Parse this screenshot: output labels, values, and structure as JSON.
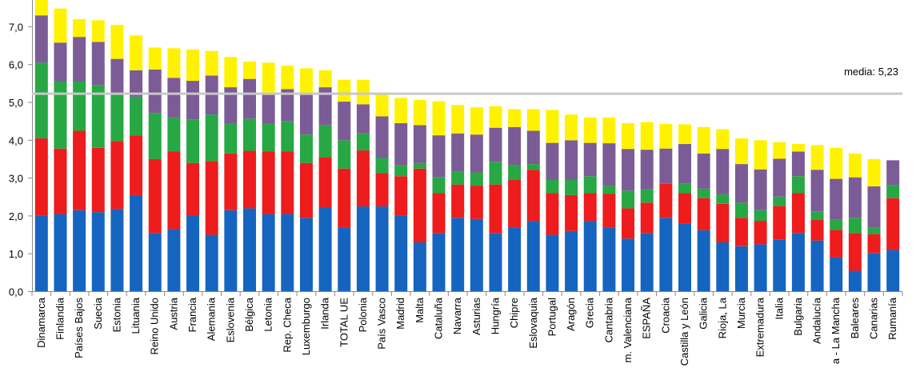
{
  "chart_data": {
    "type": "bar",
    "stacked": true,
    "yticks": [
      "0,0",
      "1,0",
      "2,0",
      "3,0",
      "4,0",
      "5,0",
      "6,0",
      "7,0"
    ],
    "ylim": [
      0,
      7.7
    ],
    "grid": false,
    "categories": [
      "Dinamarca",
      "Finlandia",
      "Países Bajos",
      "Suecia",
      "Estonia",
      "Lituania",
      "Reino Unido",
      "Austria",
      "Francia",
      "Alemania",
      "Eslovenia",
      "Bélgica",
      "Letonia",
      "Rep. Checa",
      "Luxemburgo",
      "Irlanda",
      "TOTAL UE",
      "Polonia",
      "País Vasco",
      "Madrid",
      "Malta",
      "Cataluña",
      "Navarra",
      "Asturias",
      "Hungría",
      "Chipre",
      "Eslovaquia",
      "Portugal",
      "Aragón",
      "Grecia",
      "Cantabria",
      "m. Valenciana",
      "ESPAÑA",
      "Croacia",
      "Castilla y León",
      "Galicia",
      "Rioja, La",
      "Murcia",
      "Extremadura",
      "Italia",
      "Bulgaria",
      "Andalucía",
      "a - La Mancha",
      "Baleares",
      "Canarias",
      "Rumanía"
    ],
    "series": [
      {
        "color": "#1565C0",
        "values": [
          2.0,
          2.05,
          2.15,
          2.1,
          2.18,
          2.55,
          1.55,
          1.65,
          2.02,
          1.5,
          2.15,
          2.2,
          2.05,
          2.05,
          1.95,
          2.22,
          1.7,
          2.25,
          2.25,
          2.0,
          1.3,
          1.55,
          1.95,
          1.92,
          1.55,
          1.7,
          1.87,
          1.5,
          1.6,
          1.87,
          1.7,
          1.4,
          1.55,
          1.95,
          1.8,
          1.62,
          1.3,
          1.2,
          1.25,
          1.38,
          1.55,
          1.35,
          0.9,
          0.55,
          1.02,
          1.1
        ]
      },
      {
        "color": "#EE1C1C",
        "values": [
          2.05,
          1.73,
          2.1,
          1.7,
          1.8,
          1.58,
          1.95,
          2.05,
          1.38,
          1.95,
          1.5,
          1.52,
          1.65,
          1.65,
          1.45,
          1.33,
          1.55,
          1.48,
          0.88,
          1.05,
          1.95,
          1.05,
          0.88,
          0.88,
          1.28,
          1.25,
          1.35,
          1.1,
          0.95,
          0.73,
          0.88,
          0.8,
          0.8,
          0.9,
          0.8,
          0.85,
          1.02,
          0.75,
          0.62,
          0.88,
          1.05,
          0.55,
          0.73,
          1.0,
          0.5,
          1.37
        ]
      },
      {
        "color": "#27A844",
        "values": [
          2.0,
          1.78,
          1.3,
          1.65,
          1.25,
          1.02,
          1.22,
          0.9,
          1.15,
          1.23,
          0.8,
          0.85,
          0.75,
          0.8,
          0.75,
          0.85,
          0.75,
          0.45,
          0.4,
          0.3,
          0.15,
          0.43,
          0.35,
          0.35,
          0.6,
          0.4,
          0.15,
          0.35,
          0.4,
          0.45,
          0.22,
          0.47,
          0.35,
          0.0,
          0.25,
          0.25,
          0.25,
          0.4,
          0.28,
          0.25,
          0.45,
          0.22,
          0.28,
          0.4,
          0.18,
          0.35
        ]
      },
      {
        "color": "#7B5C97",
        "values": [
          1.25,
          1.02,
          1.18,
          1.15,
          0.92,
          0.7,
          1.15,
          1.05,
          1.02,
          1.03,
          0.95,
          1.05,
          0.75,
          0.85,
          1.05,
          1.0,
          1.02,
          0.77,
          1.1,
          1.1,
          1.0,
          1.1,
          1.0,
          1.0,
          0.9,
          1.0,
          0.88,
          0.98,
          1.05,
          0.88,
          1.12,
          1.1,
          1.05,
          0.93,
          1.05,
          0.93,
          1.2,
          1.02,
          1.08,
          1.0,
          0.65,
          1.1,
          1.07,
          1.07,
          1.08,
          0.65
        ]
      },
      {
        "color": "#FFF200",
        "values": [
          0.45,
          0.9,
          0.47,
          0.57,
          0.9,
          0.92,
          0.58,
          0.78,
          0.83,
          0.65,
          0.8,
          0.46,
          0.85,
          0.62,
          0.7,
          0.45,
          0.58,
          0.65,
          0.6,
          0.67,
          0.67,
          0.9,
          0.75,
          0.72,
          0.57,
          0.47,
          0.57,
          0.87,
          0.68,
          0.67,
          0.68,
          0.68,
          0.73,
          0.65,
          0.52,
          0.7,
          0.52,
          0.68,
          0.77,
          0.44,
          0.2,
          0.65,
          0.82,
          0.63,
          0.72,
          0.0
        ]
      }
    ],
    "reference_line": {
      "value": 5.23,
      "label": "media: 5,23",
      "color": "#c8c8c8"
    }
  }
}
